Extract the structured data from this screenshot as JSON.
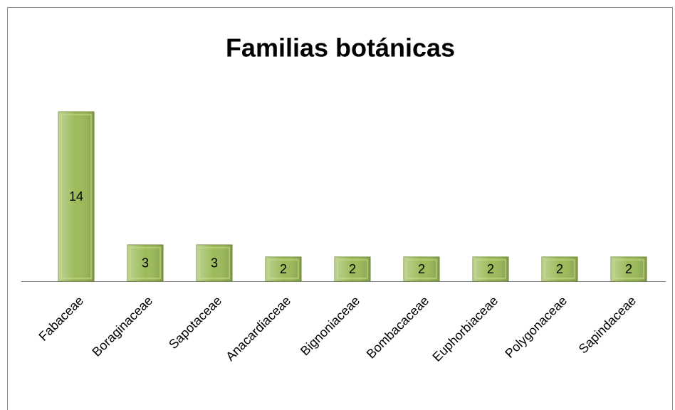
{
  "chart_data": {
    "type": "bar",
    "title": "Familias botánicas",
    "categories": [
      "Fabaceae",
      "Boraginaceae",
      "Sapotaceae",
      "Anacardiaceae",
      "Bignoniaceae",
      "Bombacaceae",
      "Euphorbiaceae",
      "Polygonaceae",
      "Sapindaceae"
    ],
    "values": [
      14,
      3,
      3,
      2,
      2,
      2,
      2,
      2,
      2
    ],
    "color": "#9bbb59",
    "ylim": [
      0,
      14
    ]
  }
}
